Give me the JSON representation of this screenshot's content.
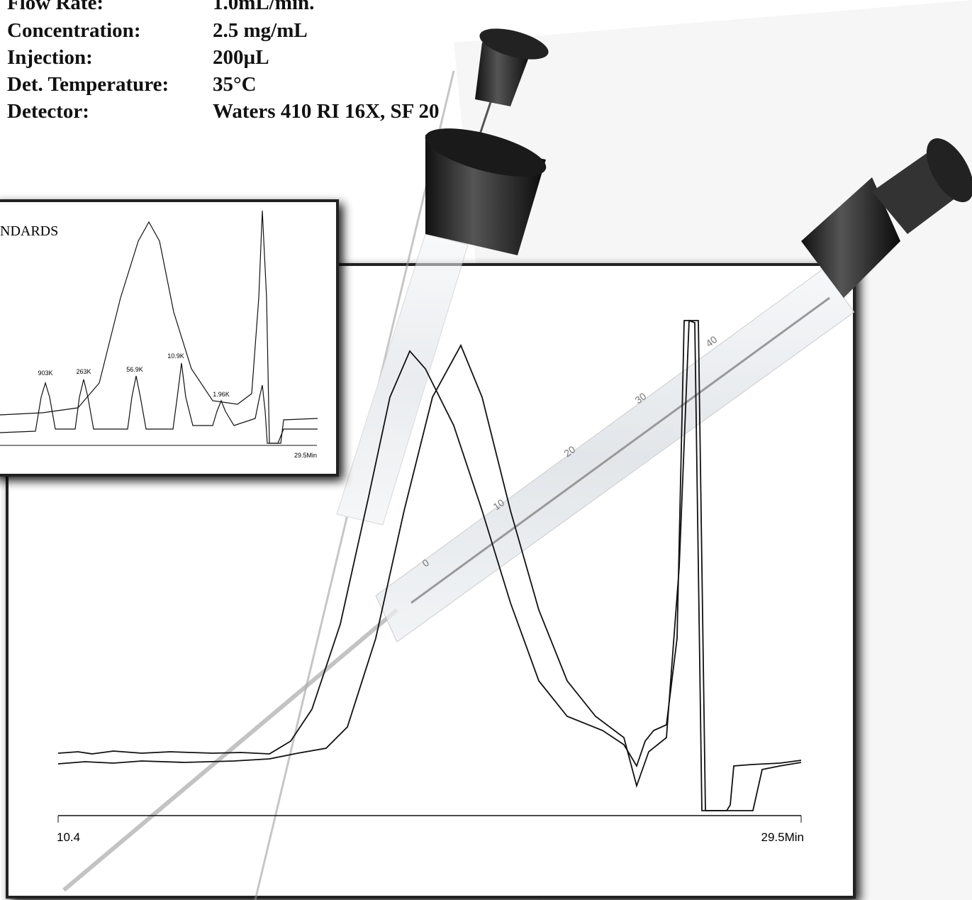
{
  "conditions": [
    {
      "label": "Flow Rate:",
      "value": "1.0mL/min."
    },
    {
      "label": "Concentration:",
      "value": "2.5 mg/mL"
    },
    {
      "label": "Injection:",
      "value": "200µL"
    },
    {
      "label": "Det. Temperature:",
      "value": "35°C"
    },
    {
      "label": "Detector:",
      "value": "Waters 410 RI 16X, SF 20"
    }
  ],
  "inset": {
    "title": "NDARDS",
    "peak_labels": [
      "903K",
      "263K",
      "56.9K",
      "10.9K",
      "1.96K"
    ],
    "axis_end": "29.5Min"
  },
  "main": {
    "axis_start": "10.4",
    "axis_end": "29.5Min"
  },
  "syringe_scale": [
    "0",
    "10",
    "20",
    "30",
    "40"
  ]
}
